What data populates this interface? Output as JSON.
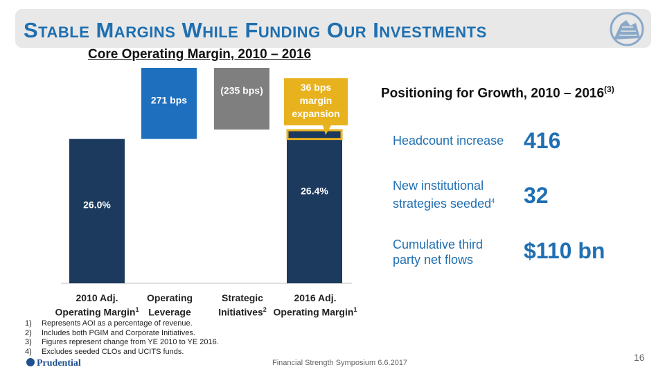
{
  "header": {
    "title": "Stable Margins While Funding Our Investments",
    "logo_icon": "rock-logo-icon"
  },
  "chart_data": {
    "type": "bar",
    "title": "Core Operating Margin, 2010 – 2016",
    "categories": [
      {
        "line1": "2010 Adj.",
        "line2": "Operating Margin",
        "note": "1"
      },
      {
        "line1": "Operating",
        "line2": "Leverage",
        "note": ""
      },
      {
        "line1": "Strategic",
        "line2": "Initiatives",
        "note": "2"
      },
      {
        "line1": "2016 Adj.",
        "line2": "Operating Margin",
        "note": "1"
      }
    ],
    "bars": [
      {
        "base": 0,
        "top": 26.0,
        "label": "26.0%",
        "color": "#1b3a5e"
      },
      {
        "base": 26.0,
        "top": 28.71,
        "label": "271 bps",
        "color": "#1f6fbf"
      },
      {
        "base": 26.36,
        "top": 28.71,
        "label": "(235 bps)",
        "color": "#7f7f7f"
      },
      {
        "base": 0,
        "top": 26.36,
        "label": "26.4%",
        "color": "#1b3a5e"
      }
    ],
    "highlight": {
      "base": 26.0,
      "top": 26.36,
      "color": "#e8b21e"
    },
    "callout": {
      "lines": [
        "36 bps",
        "margin",
        "expansion"
      ],
      "color": "#e8b21e"
    },
    "ylim": [
      0,
      28.71
    ]
  },
  "positioning": {
    "title": "Positioning for Growth, 2010 – 2016",
    "title_note": "(3)",
    "stats": [
      {
        "label_lines": [
          "Headcount increase"
        ],
        "note": "",
        "value": "416"
      },
      {
        "label_lines": [
          "New institutional",
          "strategies seeded"
        ],
        "note": "4",
        "value": "32"
      },
      {
        "label_lines": [
          "Cumulative third",
          "party net flows"
        ],
        "note": "",
        "value": "$110 bn"
      }
    ]
  },
  "footnotes": [
    {
      "num": "1)",
      "text": "Represents AOI as a percentage of revenue."
    },
    {
      "num": "2)",
      "text": "Includes both PGIM and Corporate Initiatives."
    },
    {
      "num": "3)",
      "text": "Figures represent change from YE 2010 to YE 2016."
    },
    {
      "num": "4)",
      "text": "Excludes seeded CLOs and UCITS funds."
    }
  ],
  "footer": {
    "center": "Financial Strength Symposium 6.6.2017",
    "page": "16",
    "brand": "Prudential"
  }
}
